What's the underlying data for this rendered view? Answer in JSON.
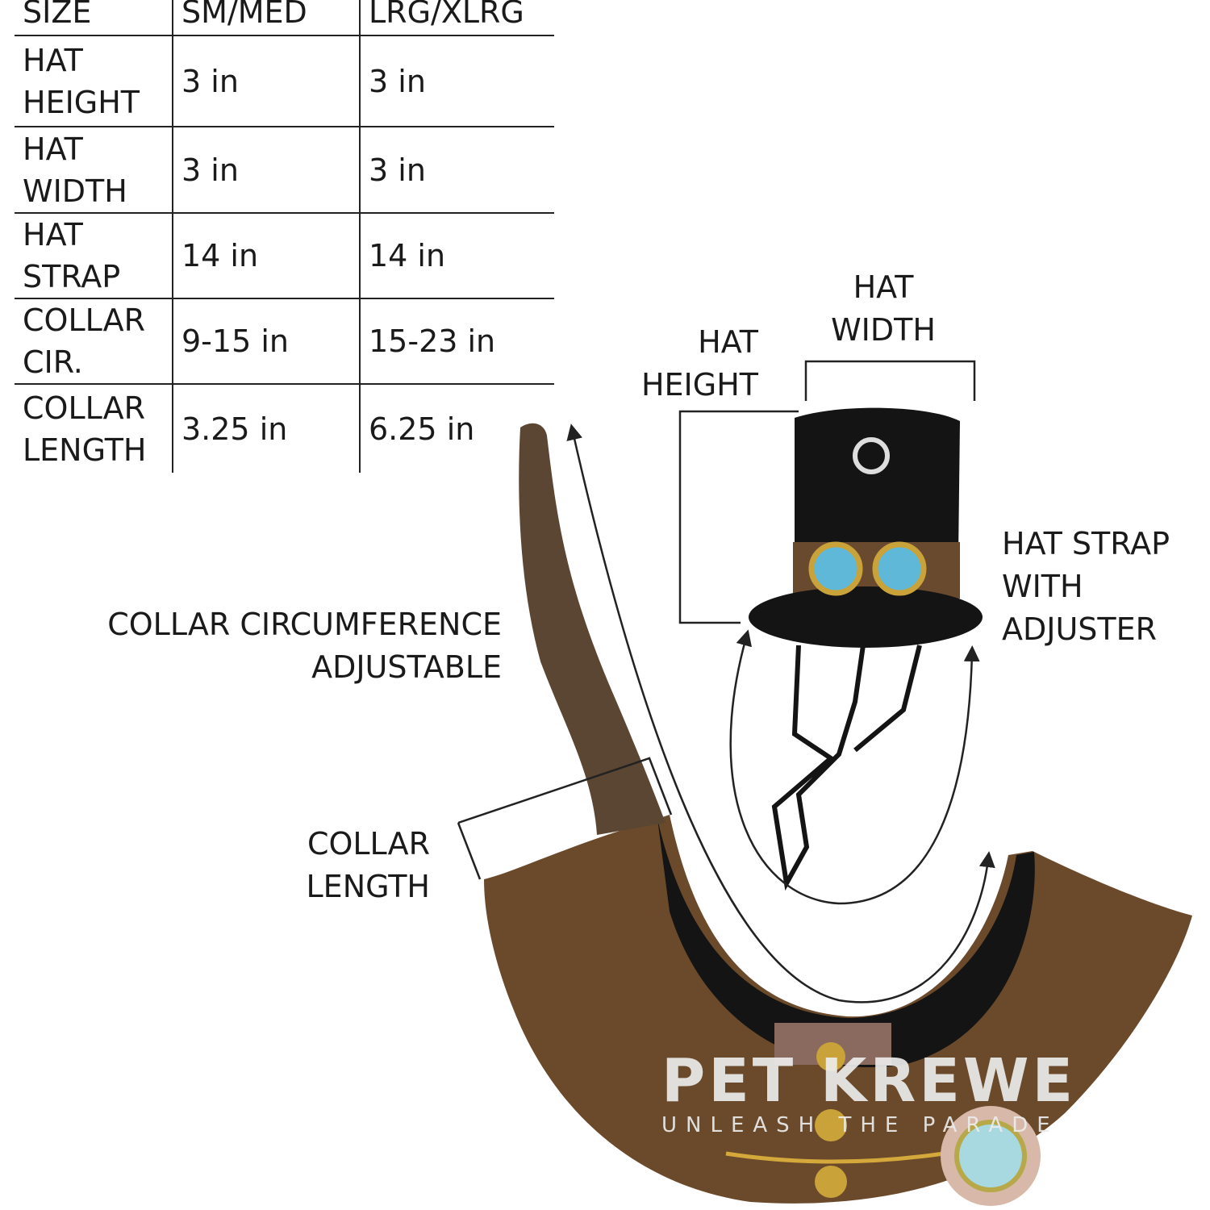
{
  "size_table": {
    "headers": [
      "SIZE",
      "SM/MED",
      "LRG/XLRG"
    ],
    "rows": [
      {
        "label": [
          "HAT",
          "HEIGHT"
        ],
        "sm_med": "3 in",
        "lrg_xlrg": "3 in"
      },
      {
        "label": [
          "HAT",
          "WIDTH"
        ],
        "sm_med": "3 in",
        "lrg_xlrg": "3 in"
      },
      {
        "label": [
          "HAT",
          "STRAP"
        ],
        "sm_med": "14 in",
        "lrg_xlrg": "14 in"
      },
      {
        "label": [
          "COLLAR",
          "CIR."
        ],
        "sm_med": "9-15 in",
        "lrg_xlrg": "15-23 in"
      },
      {
        "label": [
          "COLLAR",
          "LENGTH"
        ],
        "sm_med": "3.25 in",
        "lrg_xlrg": "6.25 in"
      }
    ]
  },
  "annotations": {
    "hat_width": [
      "HAT",
      "WIDTH"
    ],
    "hat_height": [
      "HAT",
      "HEIGHT"
    ],
    "hat_strap": [
      "HAT STRAP",
      "WITH",
      "ADJUSTER"
    ],
    "collar_circumference": [
      "COLLAR CIRCUMFERENCE",
      "ADJUSTABLE"
    ],
    "collar_length": [
      "COLLAR",
      "LENGTH"
    ]
  },
  "logo": {
    "name": "PET KREWE",
    "tagline": "UNLEASH THE PARADE"
  },
  "colors": {
    "collar_brown": "#6b4a2b",
    "hat_black": "#141414",
    "hat_band": "#6a4a2e",
    "goggle_blue": "#5fb8d8",
    "text": "#1a1a1a"
  }
}
